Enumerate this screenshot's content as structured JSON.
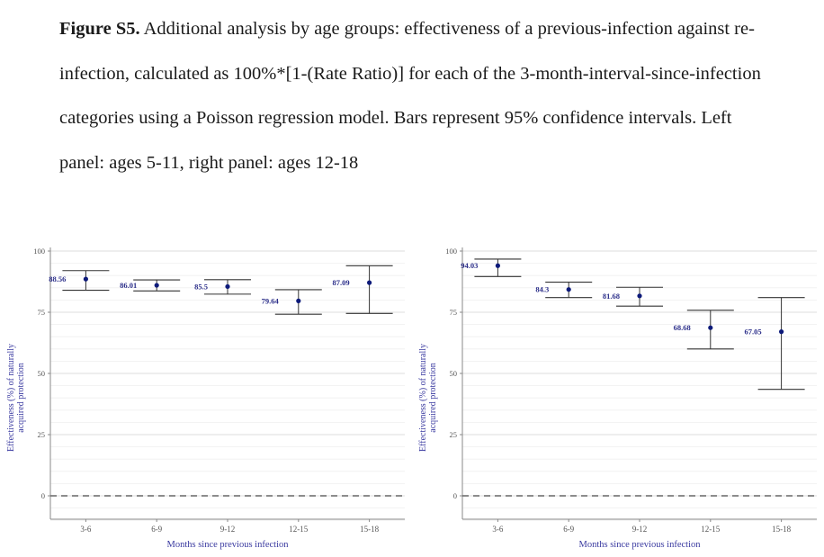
{
  "caption": {
    "label": "Figure S5.",
    "text": " Additional analysis by age groups: effectiveness of a previous-infection against re-infection, calculated as 100%*[1-(Rate Ratio)] for each of the 3-month-interval-since-infection categories using a Poisson regression model. Bars represent 95% confidence intervals. Left panel: ages 5-11, right panel: ages 12-18"
  },
  "colors": {
    "point": "#0d1a7a",
    "label": "#2c2f8a",
    "axis_text": "#3a3aa0",
    "tick_text": "#555555",
    "grid": "#dcdcdc",
    "errorbar": "#333333",
    "refline": "#666666"
  },
  "chart_data": [
    {
      "type": "scatter",
      "panel": "left",
      "categories": [
        "3-6",
        "6-9",
        "9-12",
        "12-15",
        "15-18"
      ],
      "values": [
        88.56,
        86.01,
        85.5,
        79.64,
        87.09
      ],
      "labels": [
        "88.56",
        "86.01",
        "85.5",
        "79.64",
        "87.09"
      ],
      "ci_lower": [
        84,
        83.7,
        82.4,
        74.2,
        74.5
      ],
      "ci_upper": [
        92,
        88.2,
        88.3,
        84.2,
        94
      ],
      "xlabel": "Months since previous infection",
      "ylabel": "Effectiveness (%) of naturally acquired protection",
      "ylim": [
        -10,
        100
      ],
      "yticks": [
        0,
        25,
        50,
        75,
        100
      ],
      "reference_line": 0,
      "grid": true
    },
    {
      "type": "scatter",
      "panel": "right",
      "categories": [
        "3-6",
        "6-9",
        "9-12",
        "12-15",
        "15-18"
      ],
      "values": [
        94.03,
        84.3,
        81.68,
        68.68,
        67.05
      ],
      "labels": [
        "94.03",
        "84.3",
        "81.68",
        "68.68",
        "67.05"
      ],
      "ci_lower": [
        89.6,
        81,
        77.5,
        60,
        43.5
      ],
      "ci_upper": [
        96.7,
        87.3,
        85.2,
        75.8,
        81
      ],
      "xlabel": "Months since previous infection",
      "ylabel": "Effectiveness (%) of naturally acquired protection",
      "ylim": [
        -10,
        100
      ],
      "yticks": [
        0,
        25,
        50,
        75,
        100
      ],
      "reference_line": 0,
      "grid": true
    }
  ]
}
